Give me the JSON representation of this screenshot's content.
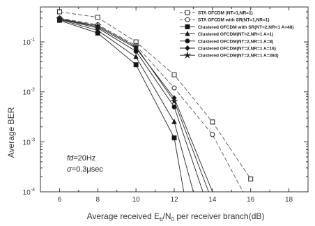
{
  "chart_data": {
    "type": "line",
    "title": "",
    "ylabel": "Average BER",
    "xlabel_parts": {
      "pre": "Average received E",
      "sub1": "b",
      "mid": "/N",
      "sub2": "0",
      "post": " per receiver branch(dB)"
    },
    "x_ticks": [
      6,
      8,
      10,
      12,
      14,
      16,
      18
    ],
    "y_ticks": [
      {
        "exp": "-4",
        "value": 0.0001
      },
      {
        "exp": "-3",
        "value": 0.001
      },
      {
        "exp": "-2",
        "value": 0.01
      },
      {
        "exp": "-1",
        "value": 0.1
      }
    ],
    "y_tick_base": "10",
    "xlim": [
      5,
      19
    ],
    "ylim": [
      0.0001,
      0.5
    ],
    "y_scale": "log",
    "legend_position": "top-right",
    "annotations": [
      {
        "it": "fd",
        "rest": "=20Hz"
      },
      {
        "it": "σ",
        "rest": "=0.3μsec"
      }
    ],
    "series": [
      {
        "name": "STA OFCDM(Nₜ=1,Nᵣ=1)",
        "legend": "STA OFCDM (NT=1,NR=1)",
        "marker": "open-square",
        "dash": "dash",
        "x": [
          6,
          8,
          10,
          12,
          14,
          16
        ],
        "y": [
          0.4,
          0.31,
          0.1,
          0.022,
          0.0025,
          0.00018
        ]
      },
      {
        "name": "STA OFCDM with SR",
        "legend": "STA OFCDM with SR(NT=1,NR=1)",
        "marker": "open-circle",
        "dash": "dash",
        "x": [
          6,
          8,
          10,
          12,
          14,
          15.6
        ],
        "y": [
          0.3,
          0.22,
          0.085,
          0.012,
          0.0014,
          0.0001
        ]
      },
      {
        "name": "Clustered OFCDM with SR A=48",
        "legend": "Clustered OFCDM with SR(NT=2,NR=1 A=48)",
        "marker": "filled-square",
        "dash": "solid",
        "x": [
          6,
          8,
          10,
          12,
          12.5
        ],
        "y": [
          0.27,
          0.15,
          0.035,
          0.0012,
          0.0001
        ]
      },
      {
        "name": "Clustered OFCDM A=1",
        "legend": "Clustered OFCDM(NT=2,NR=1 A=1)",
        "marker": "filled-triangle",
        "dash": "solid",
        "x": [
          6,
          8,
          10,
          12,
          13.0
        ],
        "y": [
          0.28,
          0.17,
          0.05,
          0.0025,
          0.0001
        ]
      },
      {
        "name": "Clustered OFCDM A=8",
        "legend": "Clustered OFCDM(NT=2,NR=1 A=8)",
        "marker": "filled-circle",
        "dash": "solid",
        "x": [
          6,
          8,
          10,
          12,
          13.5
        ],
        "y": [
          0.285,
          0.19,
          0.065,
          0.005,
          0.0001
        ]
      },
      {
        "name": "Clustered OFCDM A=16",
        "legend": "Clustered OFCDM(NT=2,NR=1 A=16)",
        "marker": "filled-diamond",
        "dash": "solid",
        "x": [
          6,
          8,
          10,
          12,
          14
        ],
        "y": [
          0.29,
          0.2,
          0.075,
          0.0075,
          0.0001
        ]
      },
      {
        "name": "Clustered OFCDM A=384",
        "legend": "Clustered OFCDM(NT=2,NR=1 A=384)",
        "marker": "filled-star",
        "dash": "solid",
        "x": [
          6,
          8,
          10,
          12,
          13.8
        ],
        "y": [
          0.29,
          0.21,
          0.08,
          0.0065,
          0.0001
        ]
      }
    ]
  }
}
